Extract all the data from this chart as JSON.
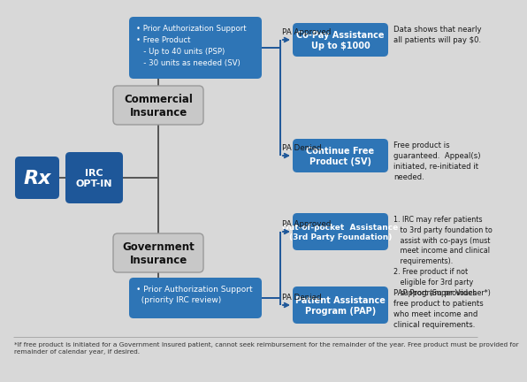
{
  "bg_color": "#d8d8d8",
  "dark_blue": "#1e5799",
  "mid_blue": "#2e75b6",
  "gray_box": "#c8c8c8",
  "gray_edge": "#999999",
  "line_color": "#1e5799",
  "text_white": "#ffffff",
  "text_dark": "#1a1a1a",
  "footnote_color": "#333333",
  "rx_label": "Rx",
  "irc_label": "IRC\nOPT-IN",
  "commercial_label": "Commercial\nInsurance",
  "government_label": "Government\nInsurance",
  "box1_text": "• Prior Authorization Support\n• Free Product\n   - Up to 40 units (PSP)\n   - 30 units as needed (SV)",
  "box2_text": "• Prior Authorization Support\n  (priority IRC review)",
  "outcome1_label": "Co-Pay Assistance\nUp to $1000",
  "outcome2_label": "Continue Free\nProduct (SV)",
  "outcome3_label": "Out-of-pocket  Assistance\n(3rd Party Foundation)",
  "outcome4_label": "Patient Assistance\nProgram (PAP)",
  "pa_approved1": "PA Approved",
  "pa_denied1": "PA Denied",
  "pa_approved2": "PA Approved",
  "pa_denied2": "PA Denied",
  "note1": "Data shows that nearly\nall patients will pay $0.",
  "note2": "Free product is\nguaranteed.  Appeal(s)\ninitiated, re-initiated it\nneeded.",
  "note3": "1. IRC may refer patients\n   to 3rd party foundation to\n   assist with co-pays (must\n   meet income and clinical\n   requirements).\n2. Free product if not\n   eligible for 3rd party\n   support (Super Voucher*)",
  "note4": "PAP Program provides\nfree product to patients\nwho meet income and\nclinical requirements.",
  "footnote": "*If free product is initiated for a Government Insured patient, cannot seek reimbursement for the remainder of the year. Free product must be provided for\nremainder of calendar year, if desired."
}
